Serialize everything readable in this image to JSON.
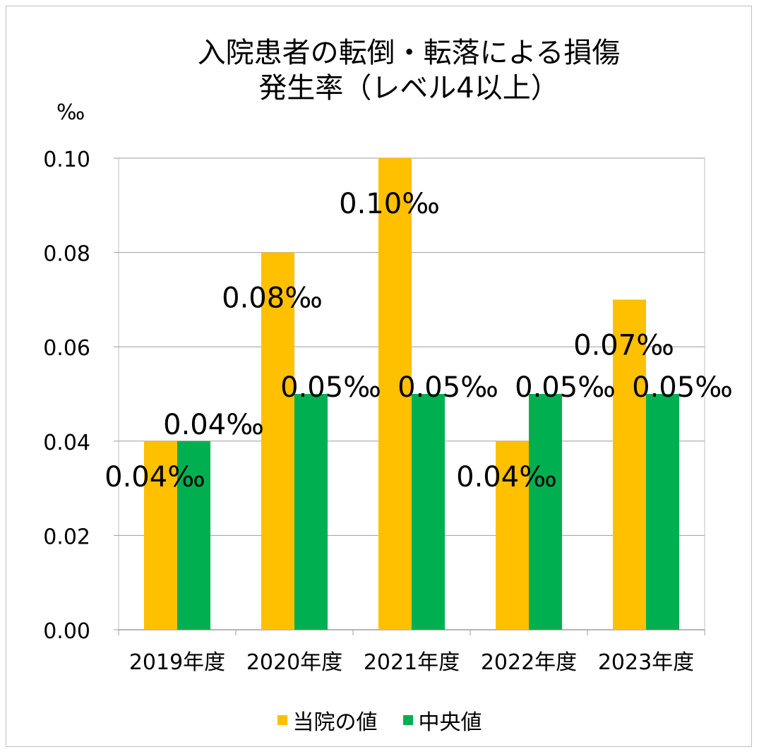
{
  "chart_data": {
    "type": "bar",
    "title_line1": "入院患者の転倒・転落による損傷",
    "title_line2": "発生率（レベル4以上）",
    "ylabel": "‰",
    "ylim": [
      0,
      0.1
    ],
    "yticks": [
      "0.00",
      "0.02",
      "0.04",
      "0.06",
      "0.08",
      "0.10"
    ],
    "categories": [
      "2019年度",
      "2020年度",
      "2021年度",
      "2022年度",
      "2023年度"
    ],
    "series": [
      {
        "name": "当院の値",
        "color": "#FFC000",
        "values": [
          0.04,
          0.08,
          0.1,
          0.04,
          0.07
        ],
        "labels": [
          "0.04‰",
          "0.08‰",
          "0.10‰",
          "0.04‰",
          "0.07‰"
        ]
      },
      {
        "name": "中央値",
        "color": "#00B050",
        "values": [
          0.04,
          0.05,
          0.05,
          0.05,
          0.05
        ],
        "labels": [
          "0.04‰",
          "0.05‰",
          "0.05‰",
          "0.05‰",
          "0.05‰"
        ]
      }
    ],
    "grid": true,
    "legend": "bottom"
  }
}
